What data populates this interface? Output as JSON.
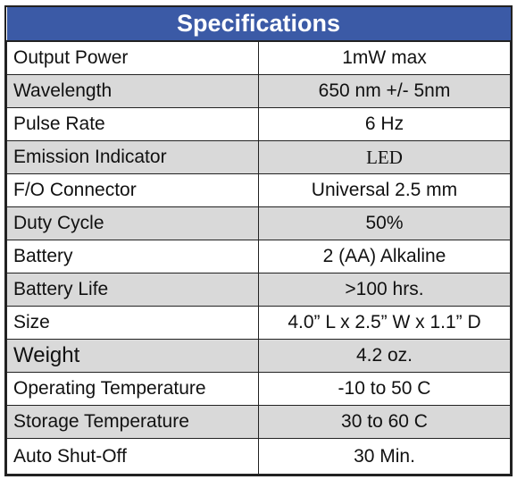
{
  "header": {
    "title": "Specifications"
  },
  "table": {
    "rows": [
      [
        "Output Power",
        "1mW max"
      ],
      [
        "Wavelength",
        "650 nm +/- 5nm"
      ],
      [
        "Pulse Rate",
        "6 Hz"
      ],
      [
        "Emission Indicator",
        "LED"
      ],
      [
        "F/O Connector",
        "Universal 2.5 mm"
      ],
      [
        "Duty Cycle",
        "50%"
      ],
      [
        "Battery",
        "2 (AA) Alkaline"
      ],
      [
        "Battery Life",
        ">100 hrs."
      ],
      [
        "Size",
        "4.0” L x 2.5” W x 1.1” D"
      ],
      [
        "Weight",
        "4.2 oz."
      ],
      [
        "Operating Temperature",
        "-10 to 50 C"
      ],
      [
        "Storage Temperature",
        "30 to 60 C"
      ],
      [
        "Auto Shut-Off",
        "30 Min."
      ]
    ]
  }
}
